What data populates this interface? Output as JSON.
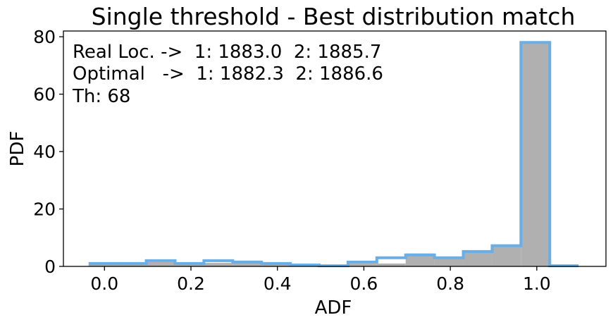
{
  "chart_data": {
    "type": "bar",
    "title": "Single threshold - Best distribution match",
    "xlabel": "ADF",
    "ylabel": "PDF",
    "xlim": [
      -0.095,
      1.16
    ],
    "ylim": [
      0,
      82
    ],
    "x_ticks": [
      "0.0",
      "0.2",
      "0.4",
      "0.6",
      "0.8",
      "1.0"
    ],
    "x_tick_values": [
      0.0,
      0.2,
      0.4,
      0.6,
      0.8,
      1.0
    ],
    "y_ticks": [
      "0",
      "20",
      "40",
      "60",
      "80"
    ],
    "y_tick_values": [
      0,
      20,
      40,
      60,
      80
    ],
    "bin_edges": [
      -0.0367,
      0.03,
      0.0967,
      0.1633,
      0.23,
      0.2967,
      0.3633,
      0.43,
      0.4967,
      0.5633,
      0.63,
      0.6967,
      0.7633,
      0.83,
      0.8967,
      0.9633,
      1.03,
      1.0967
    ],
    "series": [
      {
        "style": "filled",
        "color": "#b0b0b0",
        "values": [
          0.8,
          0.8,
          1.5,
          1.2,
          1.2,
          2.0,
          1.0,
          0.8,
          0.3,
          1.0,
          1.0,
          4.5,
          2.8,
          5.0,
          7.0,
          78.0,
          0.0
        ]
      },
      {
        "style": "step",
        "color": "#6aaee3",
        "values": [
          1.0,
          1.0,
          2.0,
          1.0,
          2.0,
          1.5,
          1.0,
          0.5,
          0.2,
          1.5,
          3.0,
          4.0,
          3.0,
          5.2,
          7.2,
          78.0,
          0.2
        ]
      }
    ],
    "grid": false,
    "annotations": [
      "Real Loc. ->  1: 1883.0  2: 1885.7",
      "Optimal   ->  1: 1882.3  2: 1886.6",
      "Th: 68"
    ]
  }
}
